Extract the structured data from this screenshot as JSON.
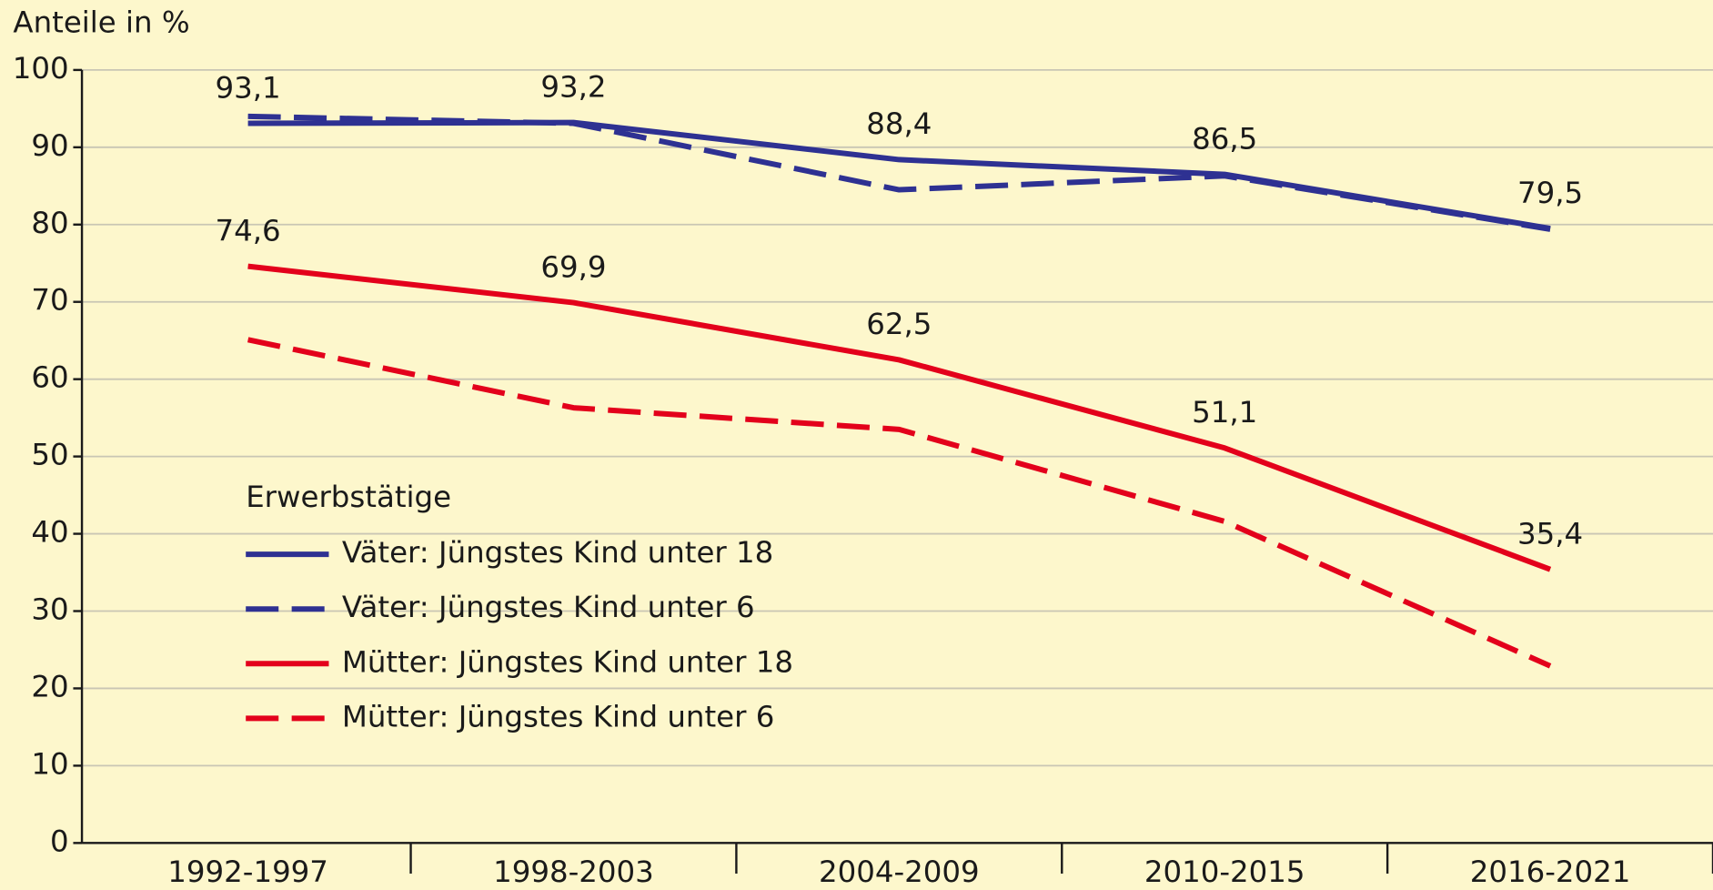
{
  "chart_data": {
    "type": "line",
    "y_axis_label": "Anteile in %",
    "categories": [
      "1992-1997",
      "1998-2003",
      "2004-2009",
      "2010-2015",
      "2016-2021"
    ],
    "ylim": [
      0,
      100
    ],
    "yticks": [
      0,
      10,
      20,
      30,
      40,
      50,
      60,
      70,
      80,
      90,
      100
    ],
    "grid": true,
    "legend_title": "Erwerbstätige",
    "legend_position": "center-left",
    "series": [
      {
        "name": "Väter: Jüngstes Kind unter 18",
        "color": "#2e3192",
        "dashed": false,
        "values": [
          93.1,
          93.2,
          88.4,
          86.5,
          79.5
        ],
        "value_labels": [
          "93,1",
          "93,2",
          "88,4",
          "86,5",
          "79,5"
        ]
      },
      {
        "name": "Väter: Jüngstes Kind unter 6",
        "color": "#2e3192",
        "dashed": true,
        "values": [
          94.0,
          93.1,
          84.5,
          86.3,
          79.4
        ]
      },
      {
        "name": "Mütter: Jüngstes Kind unter 18",
        "color": "#e3001b",
        "dashed": false,
        "values": [
          74.6,
          69.9,
          62.5,
          51.1,
          35.4
        ],
        "value_labels": [
          "74,6",
          "69,9",
          "62,5",
          "51,1",
          "35,4"
        ]
      },
      {
        "name": "Mütter: Jüngstes Kind unter 6",
        "color": "#e3001b",
        "dashed": true,
        "values": [
          65.1,
          56.3,
          53.5,
          41.6,
          22.9
        ]
      }
    ]
  }
}
